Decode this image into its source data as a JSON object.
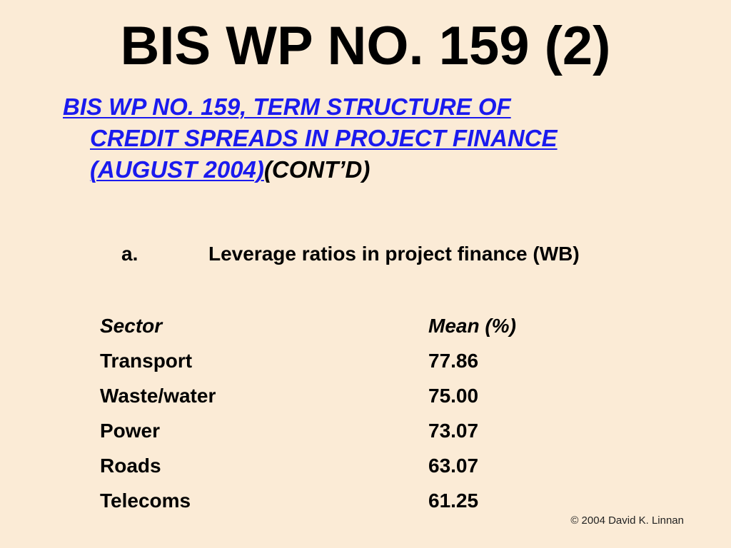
{
  "title": "BIS WP NO. 159 (2)",
  "bullet": {
    "link_line1": "BIS WP NO. 159, TERM STRUCTURE OF",
    "link_line2": "CREDIT SPREADS IN PROJECT FINANCE",
    "link_line3": "(AUGUST 2004)",
    "suffix": "(CONT’D)"
  },
  "subitem": {
    "marker": "a.",
    "text": "Leverage ratios in project finance (WB)"
  },
  "table": {
    "header": {
      "sector": "Sector",
      "mean": "Mean (%)"
    },
    "rows": [
      {
        "sector": "Transport",
        "mean": "77.86"
      },
      {
        "sector": "Waste/water",
        "mean": "75.00"
      },
      {
        "sector": "Power",
        "mean": "73.07"
      },
      {
        "sector": "Roads",
        "mean": "63.07"
      },
      {
        "sector": "Telecoms",
        "mean": "61.25"
      }
    ]
  },
  "copyright": "© 2004 David K. Linnan",
  "colors": {
    "background": "#fbebd6",
    "link": "#1a1aee",
    "text": "#000000"
  }
}
